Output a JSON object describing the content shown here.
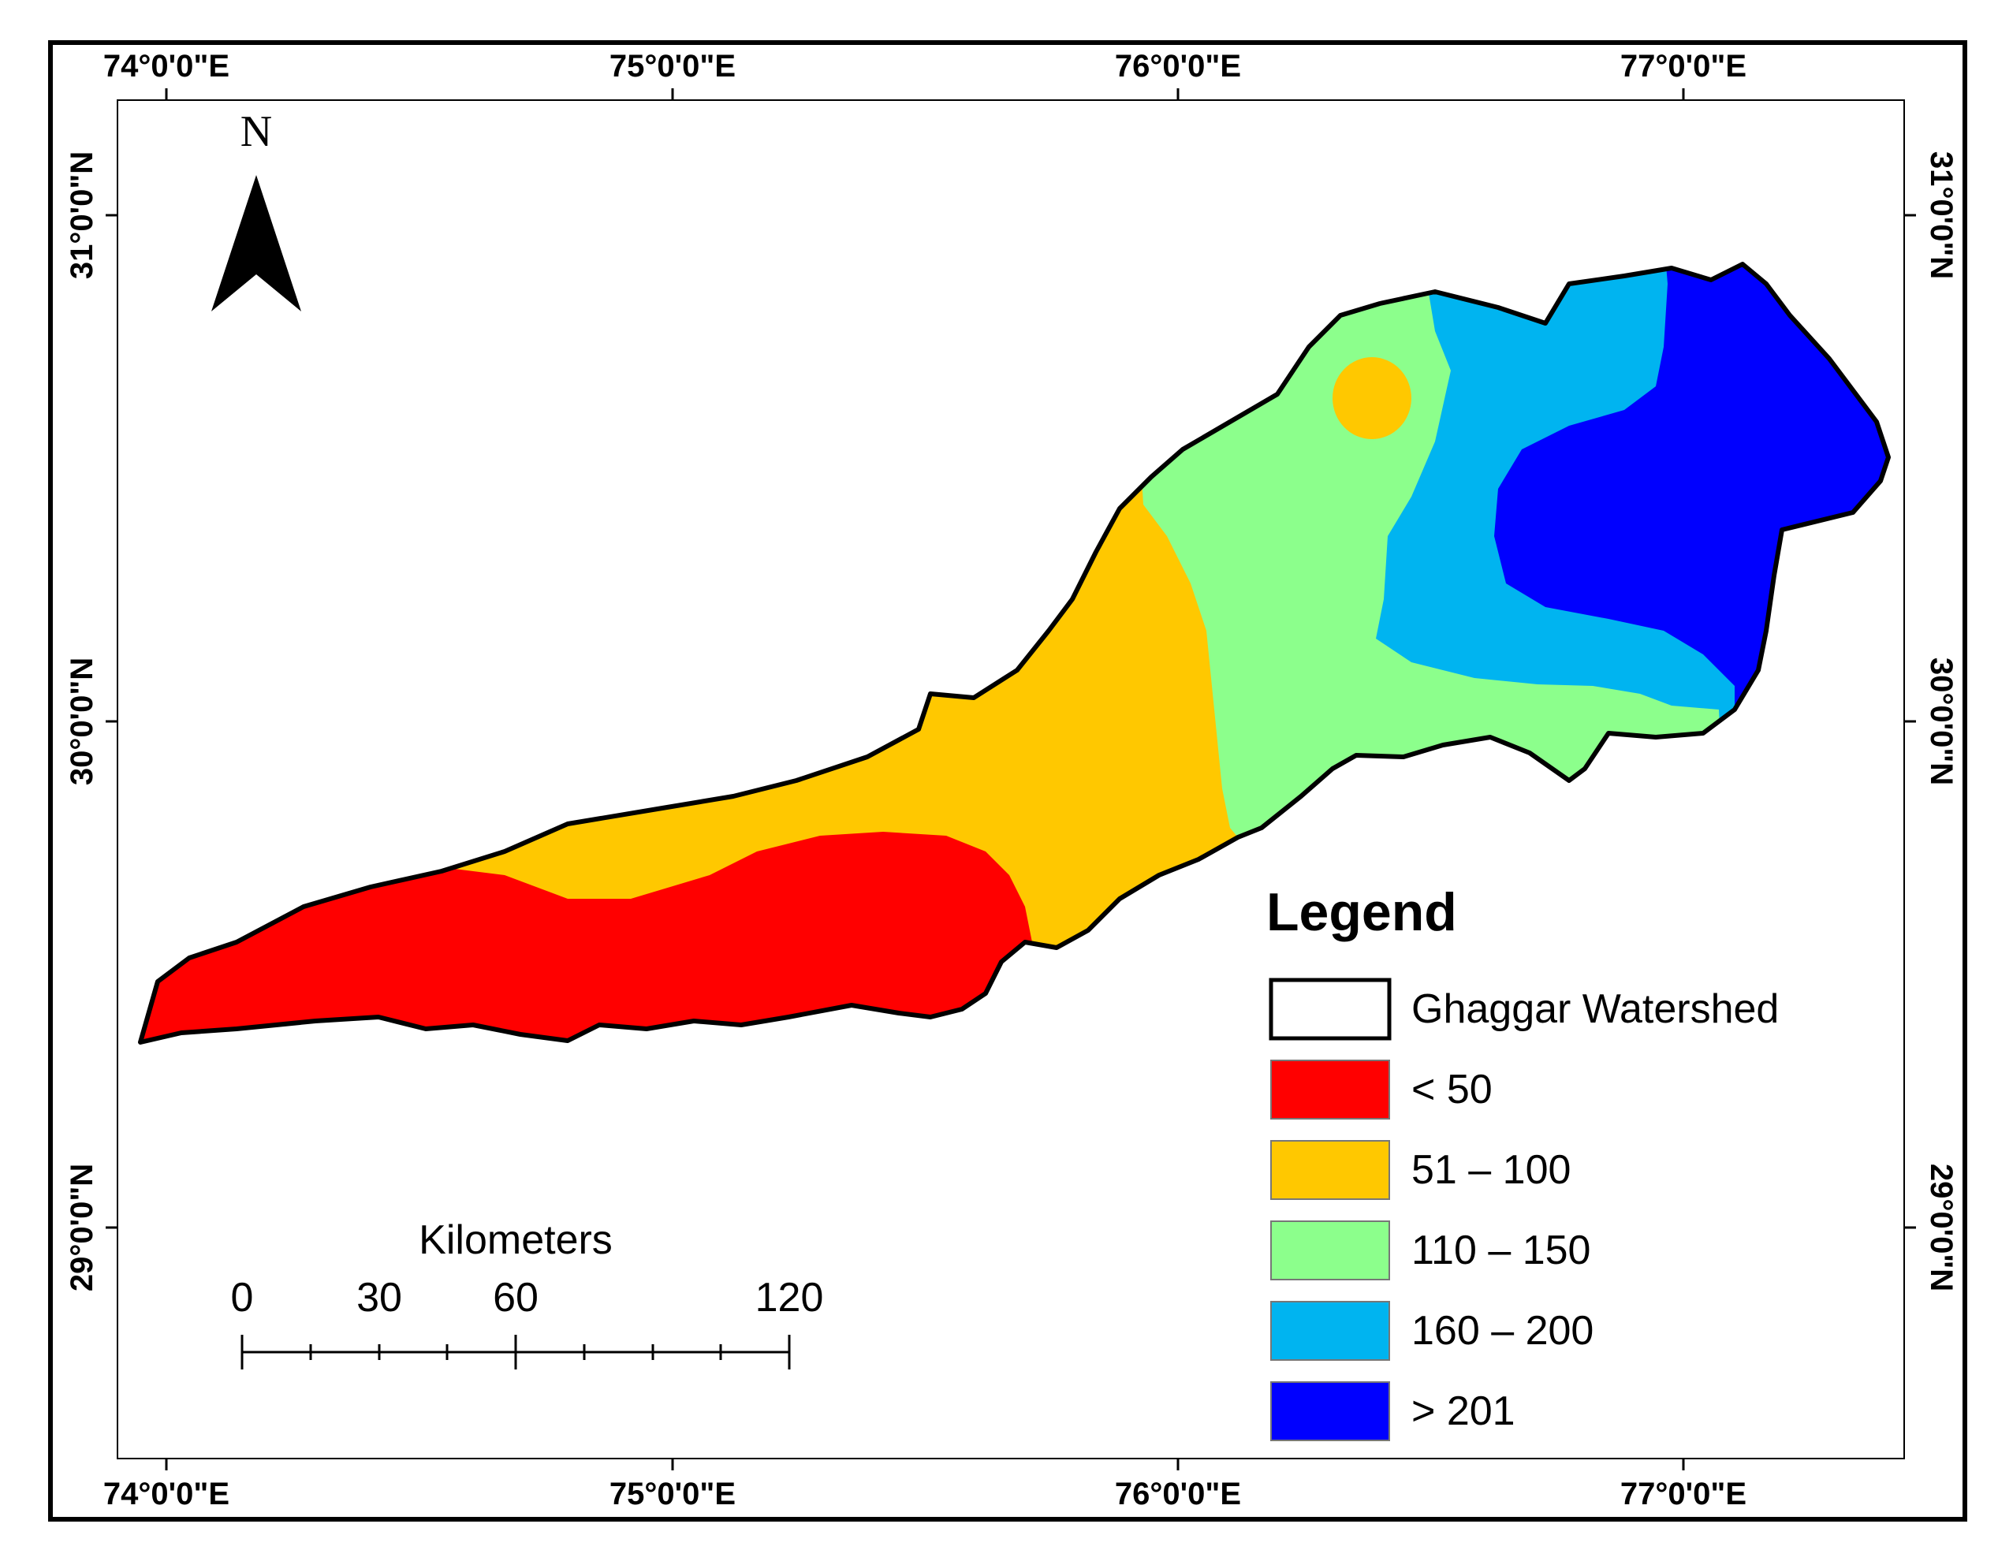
{
  "map": {
    "longitude_labels": [
      "74°0'0\"E",
      "75°0'0\"E",
      "76°0'0\"E",
      "77°0'0\"E"
    ],
    "latitude_labels": [
      "31°0'0\"N",
      "30°0'0\"N",
      "29°0'0\"N"
    ]
  },
  "north_arrow": {
    "label": "N"
  },
  "legend": {
    "title": "Legend",
    "items": [
      {
        "label": "Ghaggar Watershed",
        "color": "#ffffff"
      },
      {
        "label": "< 50",
        "color": "#ff0000"
      },
      {
        "label": "51 – 100",
        "color": "#ffc800"
      },
      {
        "label": "110 – 150",
        "color": "#8cff8c"
      },
      {
        "label": "160 – 200",
        "color": "#00b4f0"
      },
      {
        "label": "> 201",
        "color": "#0000ff"
      }
    ]
  },
  "scale_bar": {
    "title": "Kilometers",
    "ticks": [
      "0",
      "30",
      "60",
      "120"
    ]
  }
}
